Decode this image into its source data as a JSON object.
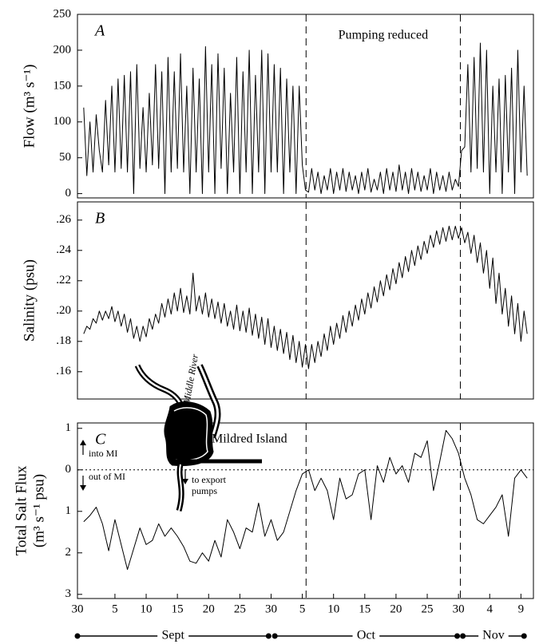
{
  "chart_data": [
    {
      "type": "line",
      "panel_label": "A",
      "ylabel": "Flow (m³ s⁻¹)",
      "annotation": "Pumping reduced",
      "xlim": [
        0,
        73
      ],
      "ylim": [
        -6,
        250
      ],
      "yticks": [
        0,
        50,
        100,
        150,
        200,
        250
      ],
      "dashed_x": [
        36.6,
        61.3
      ],
      "x": [
        1,
        1.5,
        2,
        2.5,
        3,
        3.5,
        4,
        4.5,
        5,
        5.5,
        6,
        6.5,
        7,
        7.5,
        8,
        8.5,
        9,
        9.5,
        10,
        10.5,
        11,
        11.5,
        12,
        12.5,
        13,
        13.5,
        14,
        14.5,
        15,
        15.5,
        16,
        16.5,
        17,
        17.5,
        18,
        18.5,
        19,
        19.5,
        20,
        20.5,
        21,
        21.5,
        22,
        22.5,
        23,
        23.5,
        24,
        24.5,
        25,
        25.5,
        26,
        26.5,
        27,
        27.5,
        28,
        28.5,
        29,
        29.5,
        30,
        30.5,
        31,
        31.5,
        32,
        32.5,
        33,
        33.5,
        34,
        34.5,
        35,
        35.5,
        36,
        36.5,
        37,
        37.5,
        38,
        38.5,
        39,
        39.5,
        40,
        40.5,
        41,
        41.5,
        42,
        42.5,
        43,
        43.5,
        44,
        44.5,
        45,
        45.5,
        46,
        46.5,
        47,
        47.5,
        48,
        48.5,
        49,
        49.5,
        50,
        50.5,
        51,
        51.5,
        52,
        52.5,
        53,
        53.5,
        54,
        54.5,
        55,
        55.5,
        56,
        56.5,
        57,
        57.5,
        58,
        58.5,
        59,
        59.5,
        60,
        60.5,
        61,
        61.5,
        62,
        62.5,
        63,
        63.5,
        64,
        64.5,
        65,
        65.5,
        66,
        66.5,
        67,
        67.5,
        68,
        68.5,
        69,
        69.5,
        70,
        70.5,
        71,
        71.5,
        72
      ],
      "series": [
        {
          "color": "#000000",
          "values": [
            120,
            25,
            100,
            30,
            110,
            60,
            30,
            130,
            40,
            150,
            30,
            160,
            35,
            165,
            30,
            170,
            0,
            180,
            35,
            120,
            30,
            140,
            40,
            180,
            35,
            170,
            0,
            190,
            30,
            170,
            35,
            195,
            30,
            150,
            0,
            175,
            30,
            160,
            0,
            205,
            30,
            180,
            0,
            195,
            35,
            175,
            0,
            140,
            30,
            190,
            0,
            170,
            30,
            200,
            0,
            165,
            30,
            200,
            0,
            195,
            30,
            180,
            30,
            175,
            0,
            160,
            30,
            150,
            0,
            150,
            40,
            5,
            2,
            35,
            5,
            30,
            0,
            25,
            5,
            35,
            0,
            30,
            5,
            35,
            3,
            30,
            5,
            25,
            0,
            30,
            5,
            35,
            2,
            20,
            5,
            30,
            0,
            35,
            5,
            30,
            3,
            40,
            5,
            30,
            0,
            35,
            5,
            30,
            3,
            25,
            5,
            35,
            0,
            30,
            5,
            25,
            3,
            30,
            5,
            20,
            10,
            60,
            65,
            180,
            30,
            190,
            35,
            210,
            30,
            200,
            0,
            150,
            30,
            160,
            0,
            165,
            30,
            175,
            0,
            200,
            30,
            150,
            25
          ]
        }
      ]
    },
    {
      "type": "line",
      "panel_label": "B",
      "ylabel": "Salinity (psu)",
      "xlim": [
        0,
        73
      ],
      "ylim": [
        0.142,
        0.272
      ],
      "dashed_x": [
        36.6,
        61.3
      ],
      "yticks": [
        {
          "value": 0.16,
          "label": ".16"
        },
        {
          "value": 0.18,
          "label": ".18"
        },
        {
          "value": 0.2,
          "label": ".20"
        },
        {
          "value": 0.22,
          "label": ".22"
        },
        {
          "value": 0.24,
          "label": ".24"
        },
        {
          "value": 0.26,
          "label": ".26"
        }
      ],
      "x": [
        1,
        1.5,
        2,
        2.5,
        3,
        3.5,
        4,
        4.5,
        5,
        5.5,
        6,
        6.5,
        7,
        7.5,
        8,
        8.5,
        9,
        9.5,
        10,
        10.5,
        11,
        11.5,
        12,
        12.5,
        13,
        13.5,
        14,
        14.5,
        15,
        15.5,
        16,
        16.5,
        17,
        17.5,
        18,
        18.5,
        19,
        19.5,
        20,
        20.5,
        21,
        21.5,
        22,
        22.5,
        23,
        23.5,
        24,
        24.5,
        25,
        25.5,
        26,
        26.5,
        27,
        27.5,
        28,
        28.5,
        29,
        29.5,
        30,
        30.5,
        31,
        31.5,
        32,
        32.5,
        33,
        33.5,
        34,
        34.5,
        35,
        35.5,
        36,
        36.5,
        37,
        37.5,
        38,
        38.5,
        39,
        39.5,
        40,
        40.5,
        41,
        41.5,
        42,
        42.5,
        43,
        43.5,
        44,
        44.5,
        45,
        45.5,
        46,
        46.5,
        47,
        47.5,
        48,
        48.5,
        49,
        49.5,
        50,
        50.5,
        51,
        51.5,
        52,
        52.5,
        53,
        53.5,
        54,
        54.5,
        55,
        55.5,
        56,
        56.5,
        57,
        57.5,
        58,
        58.5,
        59,
        59.5,
        60,
        60.5,
        61,
        61.5,
        62,
        62.5,
        63,
        63.5,
        64,
        64.5,
        65,
        65.5,
        66,
        66.5,
        67,
        67.5,
        68,
        68.5,
        69,
        69.5,
        70,
        70.5,
        71,
        71.5,
        72
      ],
      "series": [
        {
          "color": "#000000",
          "values": [
            0.185,
            0.19,
            0.188,
            0.195,
            0.192,
            0.2,
            0.194,
            0.2,
            0.195,
            0.203,
            0.193,
            0.2,
            0.19,
            0.198,
            0.186,
            0.195,
            0.182,
            0.19,
            0.18,
            0.19,
            0.183,
            0.195,
            0.188,
            0.198,
            0.192,
            0.205,
            0.196,
            0.208,
            0.198,
            0.212,
            0.2,
            0.215,
            0.199,
            0.21,
            0.198,
            0.225,
            0.2,
            0.21,
            0.198,
            0.212,
            0.196,
            0.208,
            0.195,
            0.206,
            0.192,
            0.205,
            0.19,
            0.2,
            0.188,
            0.204,
            0.187,
            0.2,
            0.186,
            0.202,
            0.184,
            0.198,
            0.182,
            0.196,
            0.178,
            0.195,
            0.176,
            0.19,
            0.174,
            0.188,
            0.172,
            0.186,
            0.168,
            0.184,
            0.166,
            0.18,
            0.163,
            0.178,
            0.162,
            0.178,
            0.166,
            0.18,
            0.17,
            0.185,
            0.174,
            0.19,
            0.178,
            0.192,
            0.182,
            0.197,
            0.186,
            0.2,
            0.19,
            0.204,
            0.194,
            0.208,
            0.198,
            0.212,
            0.202,
            0.216,
            0.206,
            0.22,
            0.21,
            0.224,
            0.214,
            0.228,
            0.218,
            0.232,
            0.222,
            0.236,
            0.226,
            0.24,
            0.23,
            0.243,
            0.234,
            0.246,
            0.238,
            0.25,
            0.242,
            0.253,
            0.244,
            0.255,
            0.246,
            0.256,
            0.247,
            0.256,
            0.248,
            0.255,
            0.245,
            0.252,
            0.238,
            0.25,
            0.232,
            0.245,
            0.225,
            0.24,
            0.215,
            0.235,
            0.205,
            0.225,
            0.198,
            0.215,
            0.19,
            0.21,
            0.185,
            0.205,
            0.18,
            0.2,
            0.185
          ]
        }
      ]
    },
    {
      "type": "line",
      "panel_label": "C",
      "ylabel": [
        "Total Salt Flux",
        "(m³ s⁻¹ psu)"
      ],
      "xlim": [
        0,
        73
      ],
      "ylim": [
        -3.1,
        1.13
      ],
      "dashed_x": [
        36.6,
        61.3
      ],
      "hlines": [
        0
      ],
      "yticks": [
        {
          "value": -3,
          "label": "3"
        },
        {
          "value": -2,
          "label": "2"
        },
        {
          "value": -1,
          "label": "1"
        },
        0,
        1
      ],
      "xticks": [
        {
          "value": 0,
          "label": "30"
        },
        {
          "value": 6,
          "label": "5"
        },
        {
          "value": 11,
          "label": "10"
        },
        {
          "value": 16,
          "label": "15"
        },
        {
          "value": 21,
          "label": "20"
        },
        {
          "value": 26,
          "label": "25"
        },
        {
          "value": 31,
          "label": "30"
        },
        {
          "value": 36,
          "label": "5"
        },
        {
          "value": 41,
          "label": "10"
        },
        {
          "value": 46,
          "label": "15"
        },
        {
          "value": 51,
          "label": "20"
        },
        {
          "value": 56,
          "label": "25"
        },
        {
          "value": 61,
          "label": "30"
        },
        {
          "value": 66,
          "label": "4"
        },
        {
          "value": 71,
          "label": "9"
        }
      ],
      "months": [
        {
          "label": "Sept",
          "start": 0,
          "end": 30.6
        },
        {
          "label": "Oct",
          "start": 31.6,
          "end": 60.8
        },
        {
          "label": "Nov",
          "start": 61.7,
          "end": 71.5
        }
      ],
      "inset": {
        "river": "Middle River",
        "island": "Mildred Island",
        "into": "into MI",
        "out": "out of MI",
        "pumps": [
          "to export",
          "pumps"
        ]
      },
      "x": [
        1,
        2,
        3,
        4,
        5,
        6,
        7,
        8,
        9,
        10,
        11,
        12,
        13,
        14,
        15,
        16,
        17,
        18,
        19,
        20,
        21,
        22,
        23,
        24,
        25,
        26,
        27,
        28,
        29,
        30,
        31,
        32,
        33,
        34,
        35,
        36,
        37,
        38,
        39,
        40,
        41,
        42,
        43,
        44,
        45,
        46,
        47,
        48,
        49,
        50,
        51,
        52,
        53,
        54,
        55,
        56,
        57,
        58,
        59,
        60,
        61,
        62,
        63,
        64,
        65,
        66,
        67,
        68,
        69,
        70,
        71,
        72
      ],
      "series": [
        {
          "color": "#000000",
          "values": [
            -1.25,
            -1.1,
            -0.9,
            -1.3,
            -1.95,
            -1.2,
            -1.8,
            -2.4,
            -1.9,
            -1.4,
            -1.8,
            -1.7,
            -1.3,
            -1.6,
            -1.4,
            -1.6,
            -1.85,
            -2.2,
            -2.25,
            -2.0,
            -2.2,
            -1.7,
            -2.1,
            -1.2,
            -1.5,
            -1.9,
            -1.4,
            -1.5,
            -0.8,
            -1.6,
            -1.2,
            -1.7,
            -1.5,
            -1.0,
            -0.5,
            -0.1,
            0.0,
            -0.5,
            -0.2,
            -0.5,
            -1.2,
            -0.2,
            -0.7,
            -0.6,
            -0.1,
            0.0,
            -1.2,
            0.1,
            -0.3,
            0.3,
            -0.1,
            0.1,
            -0.3,
            0.4,
            0.3,
            0.7,
            -0.5,
            0.2,
            0.95,
            0.75,
            0.4,
            -0.2,
            -0.6,
            -1.2,
            -1.3,
            -1.1,
            -0.9,
            -0.6,
            -1.6,
            -0.2,
            0.0,
            -0.2
          ]
        }
      ]
    }
  ]
}
